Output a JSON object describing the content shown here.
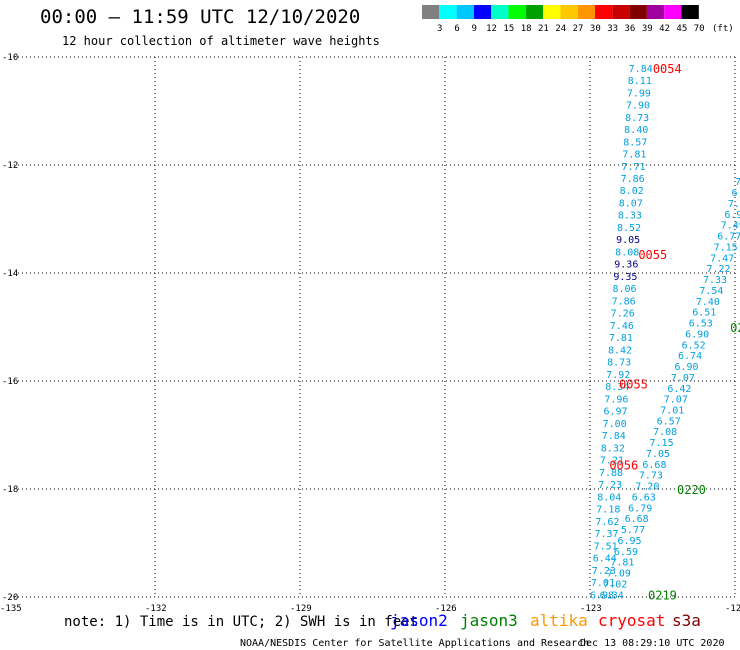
{
  "header": {
    "title": "00:00 – 11:59 UTC 12/10/2020",
    "subtitle": "12 hour collection of altimeter wave heights"
  },
  "legend": {
    "unit": "(ft)",
    "ticks": [
      "3",
      "6",
      "9",
      "12",
      "15",
      "18",
      "21",
      "24",
      "27",
      "30",
      "33",
      "36",
      "39",
      "42",
      "45",
      "70"
    ],
    "colors": [
      "#808080",
      "#00ffff",
      "#00c8ff",
      "#0000ff",
      "#00ffc8",
      "#00ff00",
      "#00a000",
      "#ffff00",
      "#ffc800",
      "#ff9600",
      "#ff0000",
      "#c80000",
      "#800000",
      "#a000a0",
      "#ff00ff",
      "#000000"
    ]
  },
  "axes": {
    "lat_labels": [
      "-10",
      "-12",
      "-14",
      "-16",
      "-18",
      "-20"
    ],
    "lon_labels": [
      "-135",
      "-132",
      "-129",
      "-126",
      "-123",
      "-12"
    ]
  },
  "map_data": {
    "lon_range": [
      -135,
      -120
    ],
    "lat_range": [
      -20,
      -10
    ],
    "tracks": [
      {
        "color": "#00a0e0",
        "lon_start": -122.2,
        "lat_start": -10.2,
        "lon_end": -123.0,
        "lat_end": -19.95,
        "values": [
          "7.84",
          "8.11",
          "7.99",
          "7.90",
          "8.73",
          "8.40",
          "8.57",
          "7.81",
          "7.71",
          "7.86",
          "8.02",
          "8.07",
          "8.33",
          "8.52",
          "9.05",
          "8.08",
          "9.36",
          "9.35",
          "8.06",
          "7.86",
          "7.26",
          "7.46",
          "7.81",
          "8.42",
          "8.73",
          "7.92",
          "8.34",
          "7.96",
          "6.97",
          "7.00",
          "7.84",
          "8.32",
          "7.21",
          "7.88",
          "7.23",
          "8.04",
          "7.18",
          "7.62",
          "7.37",
          "7.51",
          "6.44",
          "7.23",
          "7.01",
          "6.98"
        ],
        "dark_values": [
          "9.05",
          "9.36",
          "9.35"
        ]
      },
      {
        "color": "#00a0e0",
        "lon_start": -120.0,
        "lat_start": -12.3,
        "lon_end": -122.8,
        "lat_end": -19.95,
        "values": [
          "7.",
          "6.",
          "7.",
          "6.9",
          "7.49",
          "6.77",
          "7.15",
          "7.47",
          "7.22",
          "7.33",
          "7.54",
          "7.40",
          "6.51",
          "6.53",
          "6.90",
          "6.52",
          "6.74",
          "6.90",
          "7.07",
          "6.42",
          "7.07",
          "7.01",
          "6.57",
          "7.08",
          "7.15",
          "7.05",
          "6.68",
          "7.73",
          "7.20",
          "6.63",
          "6.79",
          "6.68",
          "5.77",
          "6.95",
          "6.59",
          "7.81",
          "7.09",
          "7.02",
          "6.34"
        ],
        "dark_values": []
      }
    ],
    "time_labels": [
      {
        "text": "0054",
        "color": "#ff0000",
        "lon": -121.7,
        "lat": -10.2
      },
      {
        "text": "0055",
        "color": "#ff0000",
        "lon": -122.0,
        "lat": -13.65
      },
      {
        "text": "0055",
        "color": "#ff0000",
        "lon": -122.4,
        "lat": -16.05
      },
      {
        "text": "0056",
        "color": "#ff0000",
        "lon": -122.6,
        "lat": -17.55
      },
      {
        "text": "02",
        "color": "#008000",
        "lon": -120.1,
        "lat": -15.0
      },
      {
        "text": "0220",
        "color": "#008000",
        "lon": -121.2,
        "lat": -18.0
      },
      {
        "text": "0219",
        "color": "#008000",
        "lon": -121.8,
        "lat": -19.95
      }
    ]
  },
  "footer": {
    "note": "note: 1) Time is in UTC; 2) SWH is in feet",
    "satellites": [
      {
        "name": "jason2",
        "color": "#0000ff"
      },
      {
        "name": "jason3",
        "color": "#008000"
      },
      {
        "name": "altika",
        "color": "#ff9600"
      },
      {
        "name": "cryosat",
        "color": "#ff0000"
      },
      {
        "name": "s3a",
        "color": "#800000"
      }
    ],
    "credit": "NOAA/NESDIS Center for Satellite Applications and Research",
    "timestamp": "Dec 13 08:29:10 UTC 2020"
  }
}
